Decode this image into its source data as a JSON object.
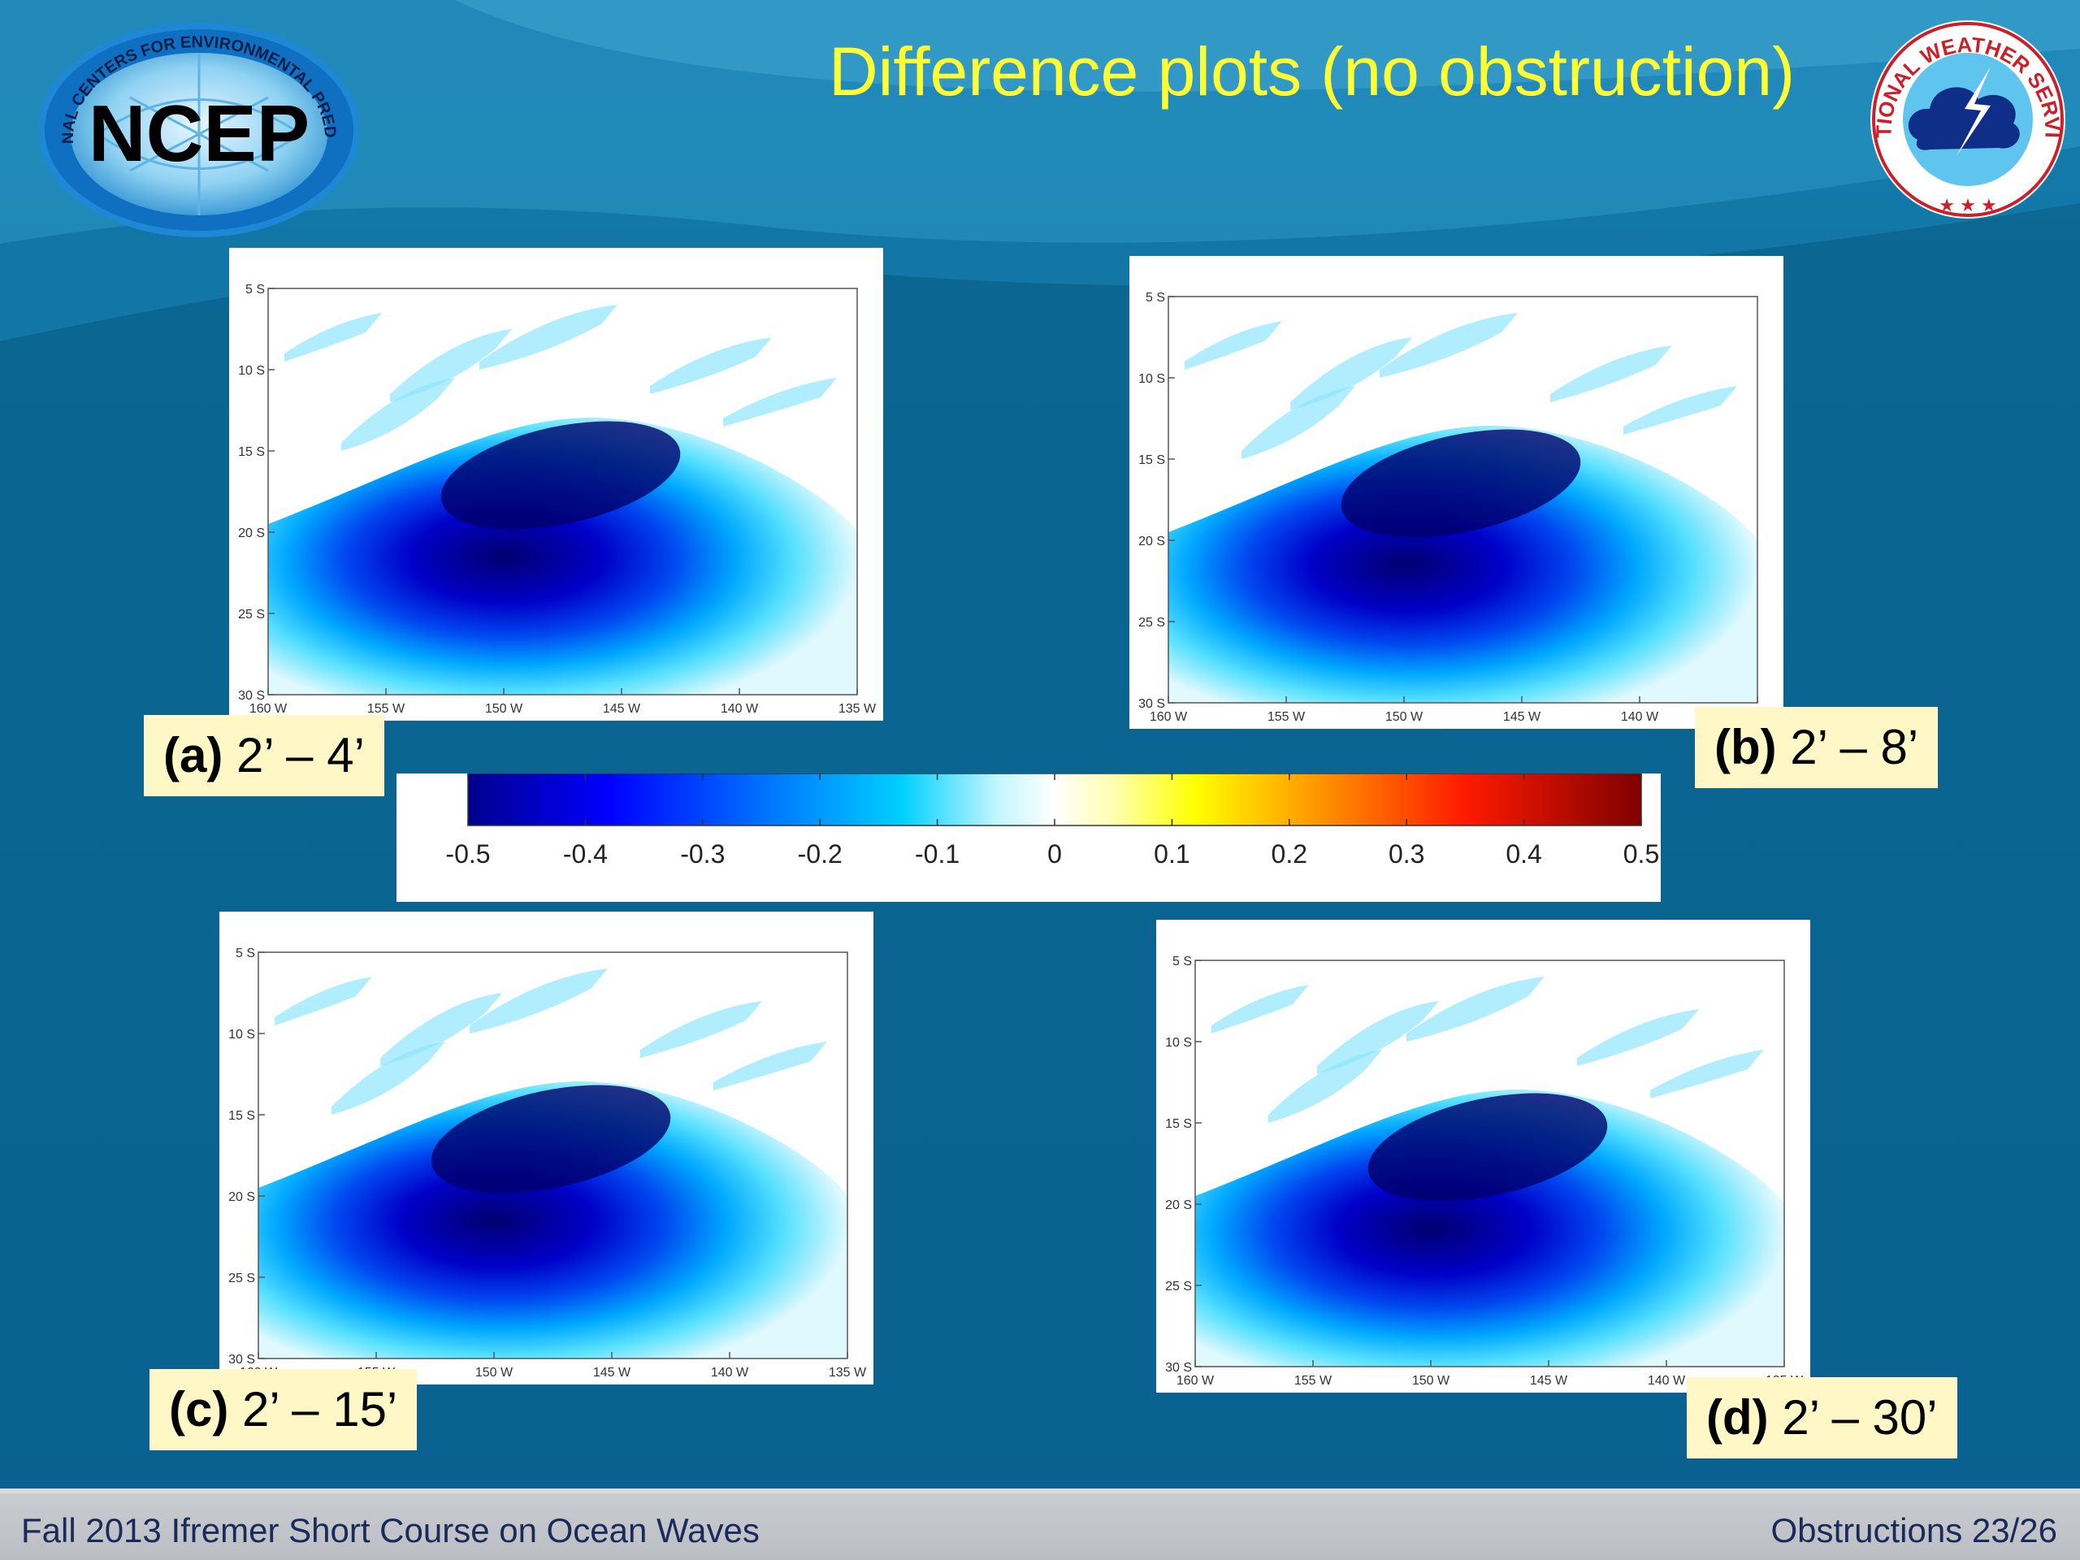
{
  "slide": {
    "title": "Difference plots (no obstruction)",
    "footer_left": "Fall 2013 Ifremer Short Course on Ocean Waves",
    "footer_right": "Obstructions 23/26"
  },
  "logos": {
    "ncep": {
      "text": "NCEP",
      "ring_text": "NATIONAL CENTERS FOR ENVIRONMENTAL PREDICTION",
      "icon": "ncep-globe-icon"
    },
    "nws": {
      "ring_text": "NATIONAL WEATHER SERVICE",
      "icon": "nws-cloud-lightning-icon"
    }
  },
  "panels": [
    {
      "letter": "(a)",
      "label": "2’ – 4’"
    },
    {
      "letter": "(b)",
      "label": "2’ – 8’"
    },
    {
      "letter": "(c)",
      "label": "2’ – 15’"
    },
    {
      "letter": "(d)",
      "label": "2’ – 30’"
    }
  ],
  "axes": {
    "lat_ticks": [
      "5 S",
      "10 S",
      "15 S",
      "20 S",
      "25 S",
      "30 S"
    ],
    "lon_ticks": [
      "160 W",
      "155 W",
      "150 W",
      "145 W",
      "140 W",
      "135 W"
    ]
  },
  "colorbar": {
    "ticks": [
      "-0.5",
      "-0.4",
      "-0.3",
      "-0.2",
      "-0.1",
      "0",
      "0.1",
      "0.2",
      "0.3",
      "0.4",
      "0.5"
    ],
    "range": [
      -0.5,
      0.5
    ]
  }
}
